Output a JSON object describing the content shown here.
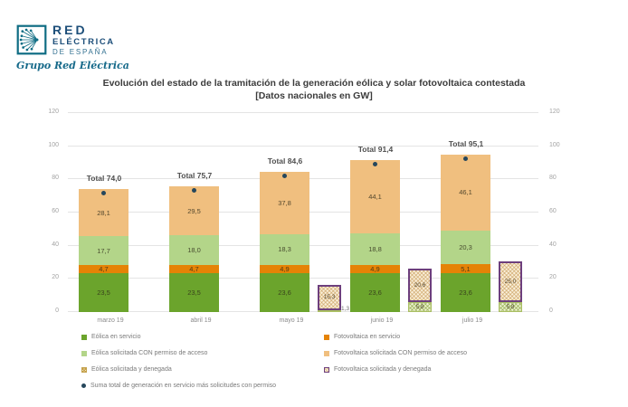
{
  "logo": {
    "line1": "RED",
    "line2": "ELÉCTRICA",
    "line3": "DE ESPAÑA",
    "tagline": "Grupo Red Eléctrica",
    "brand_color": "#1460825"
  },
  "title": {
    "line1": "Evolución del estado de la tramitación de la generación eólica y solar fotovoltaica contestada",
    "line2": "[Datos nacionales en GW]"
  },
  "chart_data": {
    "type": "bar",
    "stacked": true,
    "title": "Evolución del estado de la tramitación de la generación eólica y solar fotovoltaica contestada [Datos nacionales en GW]",
    "categories": [
      "marzo 19",
      "abril 19",
      "mayo 19",
      "junio 19",
      "julio 19"
    ],
    "ylim": [
      0,
      120
    ],
    "yticks": [
      0,
      20,
      40,
      60,
      80,
      100,
      120
    ],
    "grid": true,
    "decimal_separator": ",",
    "series": [
      {
        "key": "eolica-servicio",
        "name": "Eólica en servicio",
        "color": "#6ba42c",
        "values": [
          23.5,
          23.5,
          23.6,
          23.6,
          23.6
        ]
      },
      {
        "key": "fotovoltaica-servicio",
        "name": "Fotovoltaica en servicio",
        "color": "#e58306",
        "values": [
          4.7,
          4.7,
          4.9,
          4.9,
          5.1
        ]
      },
      {
        "key": "eolica-solicitada",
        "name": "Eólica solicitada CON permiso de acceso",
        "color": "#b3d589",
        "values": [
          17.7,
          18.0,
          18.3,
          18.8,
          20.3
        ]
      },
      {
        "key": "fotovoltaica-solicitada",
        "name": "Fotovoltaica solicitada CON permiso de acceso",
        "color": "#f0bf7f",
        "values": [
          28.1,
          29.5,
          37.8,
          44.1,
          46.1
        ]
      }
    ],
    "denied_series": [
      {
        "key": "eolica-denegada",
        "name": "Eólica solicitada y denegada",
        "hatch": "hatch-eolica",
        "values": [
          null,
          null,
          1.3,
          5.8,
          5.8
        ]
      },
      {
        "key": "fotovoltaica-denegada",
        "name": "Fotovoltaica solicitada y denegada",
        "hatch": "hatch-foto",
        "values": [
          null,
          null,
          15.3,
          20.6,
          25.0
        ]
      }
    ],
    "totals": {
      "prefix": "Total",
      "values": [
        74.0,
        75.7,
        84.6,
        91.4,
        95.1
      ]
    },
    "marker_series_name": "Suma total de generación en servicio más solicitudes con permiso",
    "marker_color": "#26475c"
  },
  "legend": {
    "left": [
      {
        "label": "Eólica en servicio",
        "marker": {
          "type": "solid",
          "color": "#6ba42c"
        }
      },
      {
        "label": "Eólica solicitada CON permiso de acceso",
        "marker": {
          "type": "solid",
          "color": "#b3d589"
        }
      },
      {
        "label": "Eólica solicitada y denegada",
        "marker": {
          "type": "hatch-green"
        }
      },
      {
        "label": "Suma total de generación en servicio más solicitudes con permiso",
        "marker": {
          "type": "dot",
          "color": "#26475c"
        }
      }
    ],
    "right": [
      {
        "label": "Fotovoltaica en servicio",
        "marker": {
          "type": "solid",
          "color": "#e58306"
        }
      },
      {
        "label": "Fotovoltaica solicitada CON permiso de acceso",
        "marker": {
          "type": "solid",
          "color": "#f0bf7f"
        }
      },
      {
        "label": "Fotovoltaica solicitada y denegada",
        "marker": {
          "type": "hatch-purple"
        }
      }
    ]
  }
}
